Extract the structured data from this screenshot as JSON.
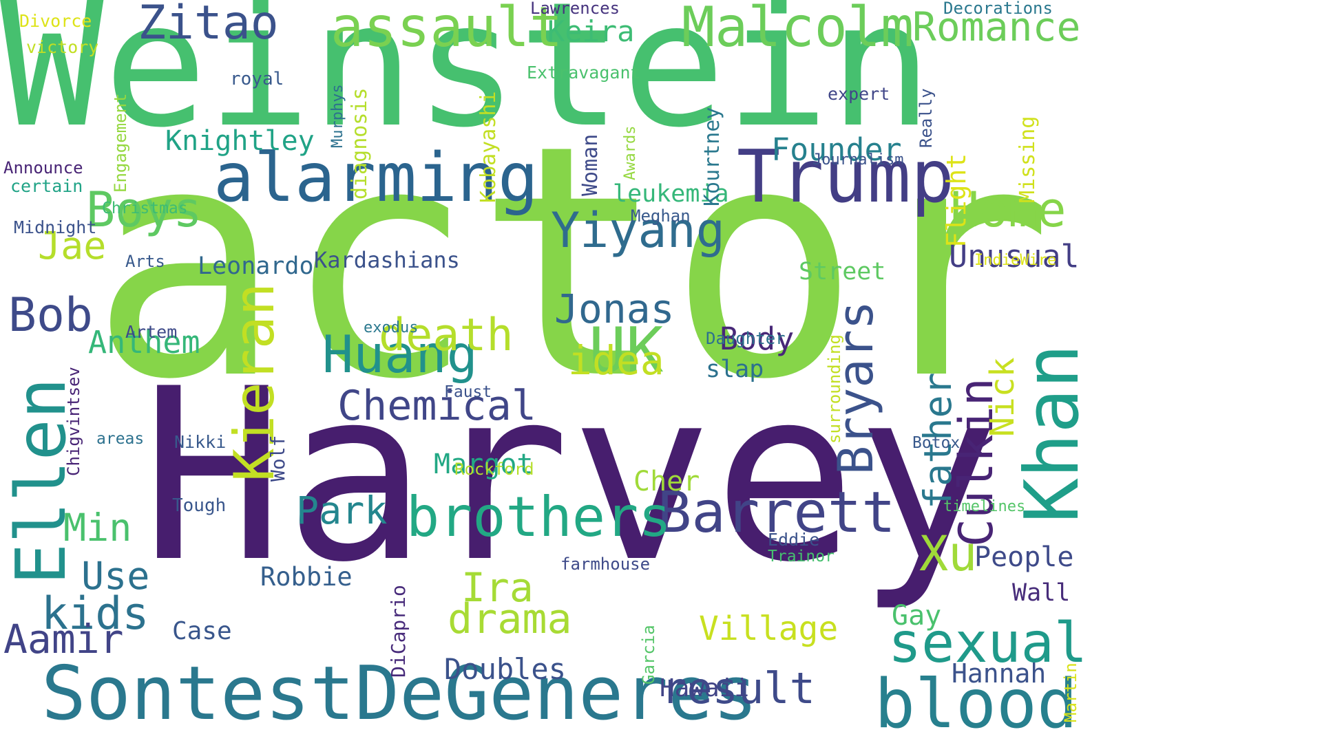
{
  "words": [
    {
      "text": "actor",
      "color": "#86d549"
    },
    {
      "text": "Harvey",
      "color": "#471e6e"
    },
    {
      "text": "Weinstein",
      "color": "#46c06f"
    },
    {
      "text": "alarming",
      "color": "#2b648e"
    },
    {
      "text": "Trump",
      "color": "#433e85"
    },
    {
      "text": "Malcolm",
      "color": "#6ccd5a"
    },
    {
      "text": "assault",
      "color": "#7ad151"
    },
    {
      "text": "Zitao",
      "color": "#3b528b"
    },
    {
      "text": "SontestDeGeneres",
      "color": "#2a788e"
    },
    {
      "text": "blood",
      "color": "#27808e"
    },
    {
      "text": "Khan",
      "color": "#1f9e89"
    },
    {
      "text": "Ellen",
      "color": "#21918c"
    },
    {
      "text": "Kieran",
      "color": "#c2df23"
    },
    {
      "text": "Barrett",
      "color": "#414487"
    },
    {
      "text": "brothers",
      "color": "#22a884"
    },
    {
      "text": "Huang",
      "color": "#21918c"
    },
    {
      "text": "UK",
      "color": "#6ccd5a"
    },
    {
      "text": "Yiyang",
      "color": "#2f6c8e"
    },
    {
      "text": "Romance",
      "color": "#6ccd5a"
    },
    {
      "text": "sexual",
      "color": "#1f9a8a"
    },
    {
      "text": "Culkin",
      "color": "#482475"
    },
    {
      "text": "Bryars",
      "color": "#3b528b"
    },
    {
      "text": "Boys",
      "color": "#5ec962"
    },
    {
      "text": "Bob",
      "color": "#3e4a89"
    },
    {
      "text": "death",
      "color": "#b5de2b"
    },
    {
      "text": "Chemical",
      "color": "#404688"
    },
    {
      "text": "Home",
      "color": "#86d549"
    },
    {
      "text": "Jonas",
      "color": "#31688e"
    },
    {
      "text": "father",
      "color": "#2a788e"
    },
    {
      "text": "result",
      "color": "#3e4a89"
    },
    {
      "text": "kids",
      "color": "#2c728e"
    },
    {
      "text": "Aamir",
      "color": "#414487"
    },
    {
      "text": "drama",
      "color": "#a8db34"
    },
    {
      "text": "Nick",
      "color": "#c8e020"
    },
    {
      "text": "Ira",
      "color": "#a5db36"
    },
    {
      "text": "Xu",
      "color": "#a0da39"
    },
    {
      "text": "Park",
      "color": "#24868e"
    },
    {
      "text": "Use",
      "color": "#2c718e"
    },
    {
      "text": "Min",
      "color": "#4ac16d"
    },
    {
      "text": "idea",
      "color": "#c2df23"
    },
    {
      "text": "Jae",
      "color": "#b5de2b"
    },
    {
      "text": "Village",
      "color": "#c8e020"
    },
    {
      "text": "Unusual",
      "color": "#433e85"
    },
    {
      "text": "Keira",
      "color": "#3dbc74"
    },
    {
      "text": "Anthem",
      "color": "#35b779"
    },
    {
      "text": "Body",
      "color": "#482878"
    },
    {
      "text": "Knightley",
      "color": "#20a386"
    },
    {
      "text": "Founder",
      "color": "#26818e"
    },
    {
      "text": "Margot",
      "color": "#22a884"
    },
    {
      "text": "Doubles",
      "color": "#3b528b"
    },
    {
      "text": "Leonardo",
      "color": "#31688e"
    },
    {
      "text": "Kardashians",
      "color": "#3b528b"
    },
    {
      "text": "Street",
      "color": "#5ec962"
    },
    {
      "text": "People",
      "color": "#3e4a89"
    },
    {
      "text": "Hannah",
      "color": "#3b528b"
    },
    {
      "text": "Wall",
      "color": "#472c7a"
    },
    {
      "text": "Gay",
      "color": "#4ac16d"
    },
    {
      "text": "Robbie",
      "color": "#355f8d"
    },
    {
      "text": "Hawaii",
      "color": "#414487"
    },
    {
      "text": "Case",
      "color": "#39568c"
    },
    {
      "text": "leukemia",
      "color": "#35b779"
    },
    {
      "text": "slap",
      "color": "#2c718e"
    },
    {
      "text": "Cher",
      "color": "#a0da39"
    },
    {
      "text": "Kourtney",
      "color": "#2a788e"
    },
    {
      "text": "Kobayashi",
      "color": "#c2df23"
    },
    {
      "text": "diagnosis",
      "color": "#b5de2b"
    },
    {
      "text": "Woman",
      "color": "#3e4a89"
    },
    {
      "text": "Flight",
      "color": "#dde318"
    },
    {
      "text": "Missing",
      "color": "#d0e11c"
    },
    {
      "text": "Wolf",
      "color": "#3e4a89"
    },
    {
      "text": "DiCaprio",
      "color": "#472a7a"
    },
    {
      "text": "Chigvintsev",
      "color": "#482475"
    },
    {
      "text": "Engagement",
      "color": "#95d840"
    },
    {
      "text": "Murphys",
      "color": "#2c718e"
    },
    {
      "text": "Awards",
      "color": "#95d840"
    },
    {
      "text": "Really",
      "color": "#3b528b"
    },
    {
      "text": "surrounding",
      "color": "#c2df23"
    },
    {
      "text": "Garcia",
      "color": "#54c568"
    },
    {
      "text": "Martin",
      "color": "#d8e219"
    },
    {
      "text": "Divorce",
      "color": "#dde318"
    },
    {
      "text": "victory",
      "color": "#c2df23"
    },
    {
      "text": "Lawrences",
      "color": "#46337e"
    },
    {
      "text": "Decorations",
      "color": "#2a788e"
    },
    {
      "text": "royal",
      "color": "#38598c"
    },
    {
      "text": "Extravagant",
      "color": "#4ac16d"
    },
    {
      "text": "expert",
      "color": "#404688"
    },
    {
      "text": "Journalism",
      "color": "#3b528b"
    },
    {
      "text": "Announce",
      "color": "#482475"
    },
    {
      "text": "certain",
      "color": "#20a386"
    },
    {
      "text": "Christmas",
      "color": "#3dbc74"
    },
    {
      "text": "Midnight",
      "color": "#3b528b"
    },
    {
      "text": "Meghan",
      "color": "#38598c"
    },
    {
      "text": "Arts",
      "color": "#38598c"
    },
    {
      "text": "IndieWire",
      "color": "#dde318"
    },
    {
      "text": "Artem",
      "color": "#3e4a89"
    },
    {
      "text": "exodus",
      "color": "#2a788e"
    },
    {
      "text": "Daughter",
      "color": "#2c718e"
    },
    {
      "text": "Faust",
      "color": "#3b528b"
    },
    {
      "text": "areas",
      "color": "#2c718e"
    },
    {
      "text": "Nikki",
      "color": "#38598c"
    },
    {
      "text": "Rockford",
      "color": "#b5de2b"
    },
    {
      "text": "Botox",
      "color": "#38598c"
    },
    {
      "text": "timelines",
      "color": "#54c568"
    },
    {
      "text": "Tough",
      "color": "#39568c"
    },
    {
      "text": "Eddie",
      "color": "#3b528b"
    },
    {
      "text": "Trainor",
      "color": "#46c06f"
    },
    {
      "text": "farmhouse",
      "color": "#3e4a89"
    }
  ]
}
